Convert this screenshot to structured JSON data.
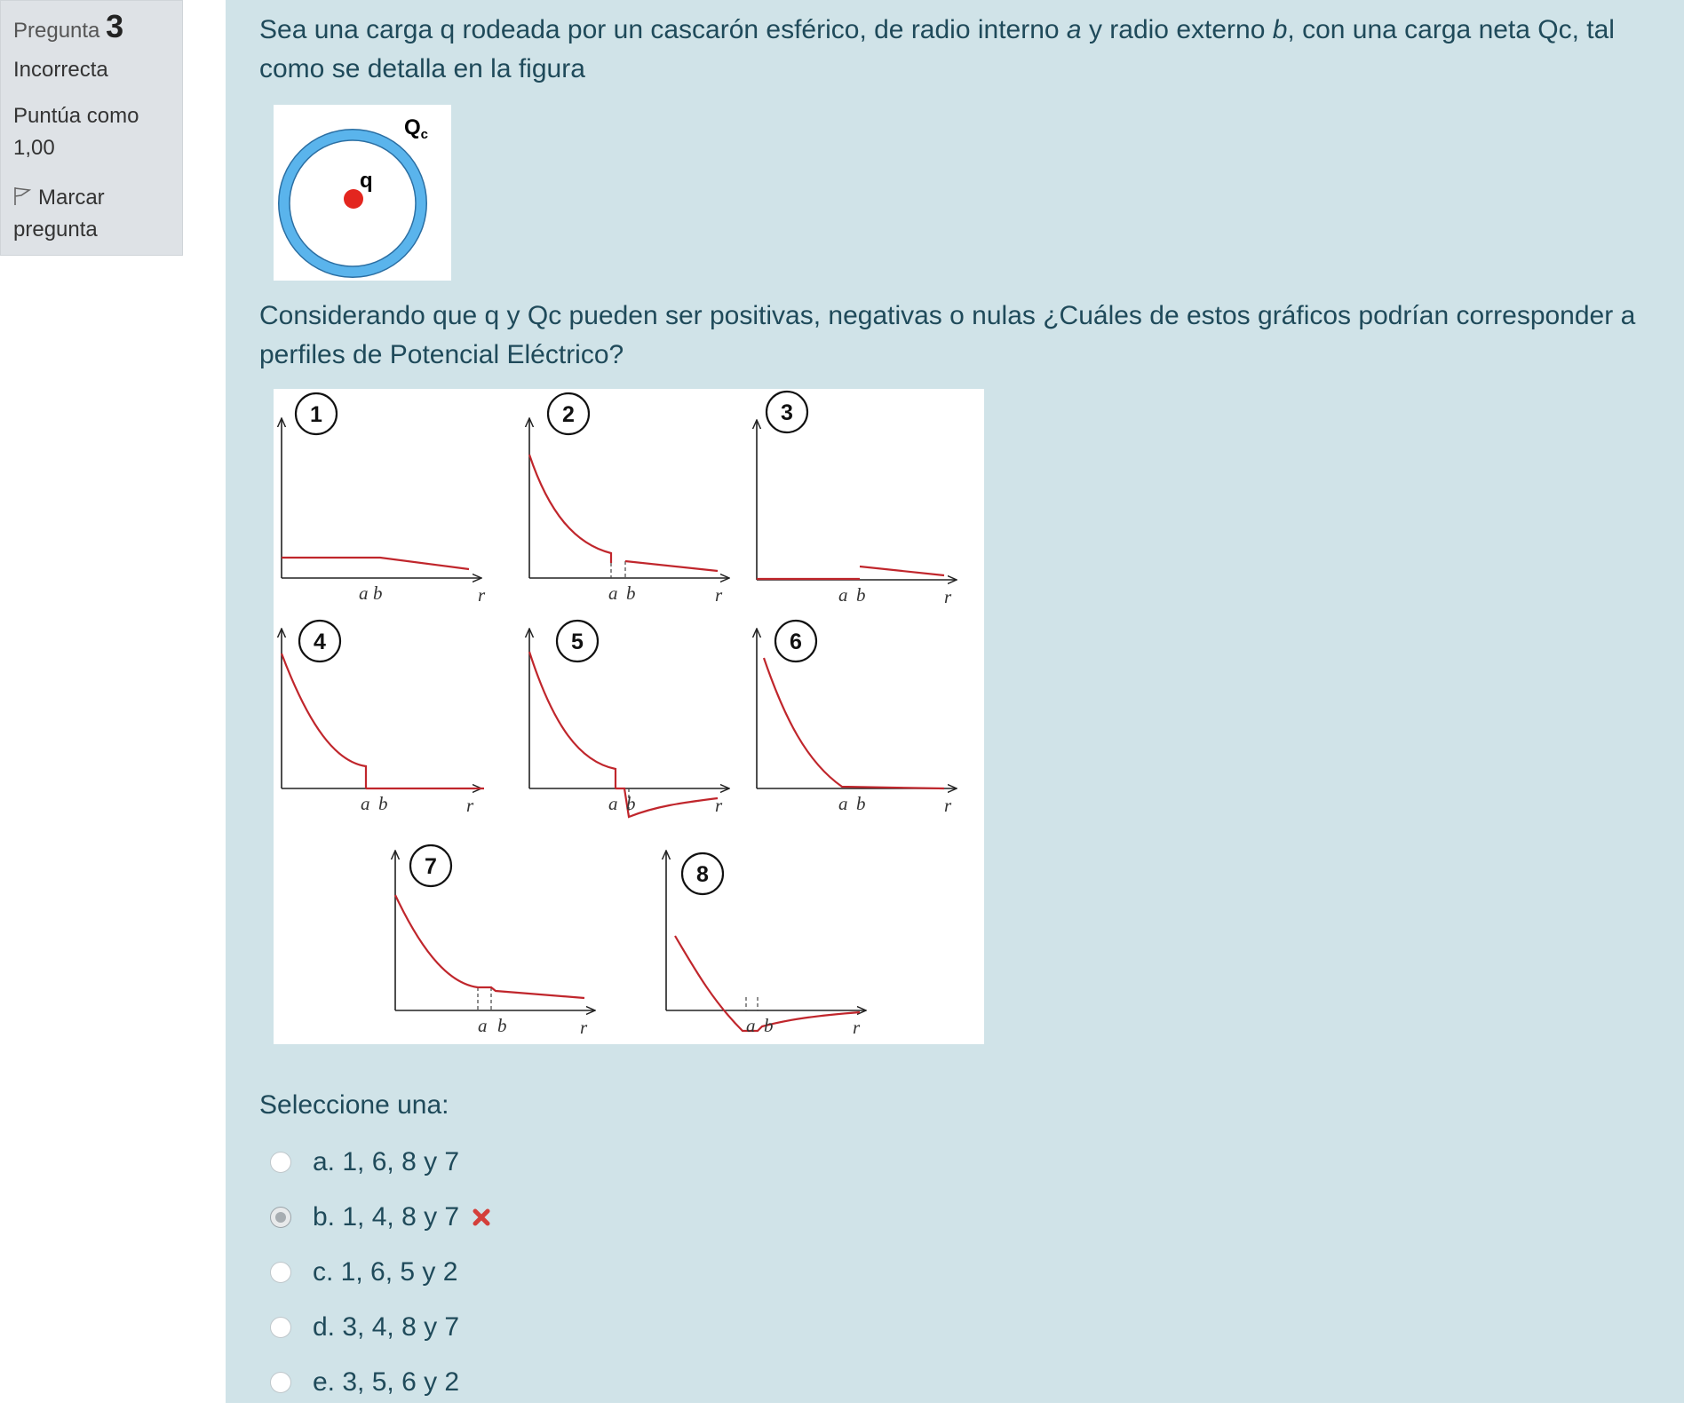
{
  "info": {
    "question_label": "Pregunta",
    "question_number": "3",
    "state": "Incorrecta",
    "grade": "Puntúa como 1,00",
    "flag_label": "Marcar pregunta",
    "flag_icon": "flag-icon"
  },
  "question": {
    "text_parts": [
      "Sea una carga q rodeada por un cascarón esférico, de radio interno ",
      "a",
      " y radio externo ",
      "b",
      ", con una carga neta Qc, tal como se detalla en la figura"
    ],
    "text2": "Considerando que q y Qc pueden ser positivas, negativas o nulas ¿Cuáles de estos gráficos podrían corresponder a perfiles de Potencial Eléctrico?"
  },
  "figure": {
    "shell_label_main": "Q",
    "shell_label_sub": "c",
    "charge_label": "q",
    "shell_color": "#5ab4ec",
    "charge_color": "#e3261f"
  },
  "graphs": {
    "labels": [
      "1",
      "2",
      "3",
      "4",
      "5",
      "6",
      "7",
      "8"
    ],
    "axis_a": "a",
    "axis_b": "b",
    "axis_r": "r",
    "curve_color": "#c0262c"
  },
  "answer": {
    "prompt": "Seleccione una:",
    "options": [
      {
        "label": "a. 1, 6, 8 y 7",
        "checked": false
      },
      {
        "label": "b. 1, 4, 8 y 7",
        "checked": true,
        "mark": "x-icon"
      },
      {
        "label": "c. 1, 6, 5 y 2",
        "checked": false
      },
      {
        "label": "d. 3, 4, 8 y 7",
        "checked": false
      },
      {
        "label": "e. 3, 5, 6 y 2",
        "checked": false
      }
    ],
    "incorrect_color": "#d43f3a"
  }
}
